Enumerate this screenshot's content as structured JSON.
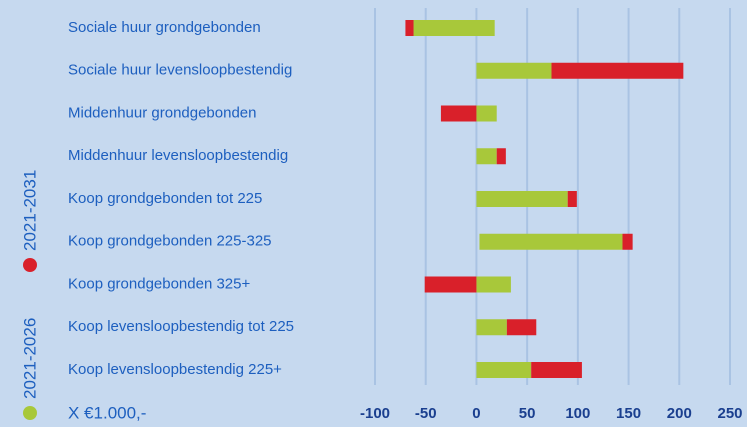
{
  "chart_data": {
    "type": "range-bar",
    "unit_label": "X €1.000,-",
    "categories": [
      "Sociale huur grondgebonden",
      "Sociale huur levensloopbestendig",
      "Middenhuur grondgebonden",
      "Middenhuur levensloopbestendig",
      "Koop grondgebonden tot 225",
      "Koop grondgebonden 225-325",
      "Koop grondgebonden 325+",
      "Koop levensloopbestendig tot 225",
      "Koop levensloopbestendig 225+"
    ],
    "series": [
      {
        "name": "2021-2026",
        "color": "#a8c83a",
        "values": [
          [
            -62,
            18
          ],
          [
            0,
            74
          ],
          [
            0,
            20
          ],
          [
            0,
            20
          ],
          [
            0,
            90
          ],
          [
            3,
            144
          ],
          [
            0,
            34
          ],
          [
            0,
            30
          ],
          [
            0,
            54
          ]
        ]
      },
      {
        "name": "2021-2031",
        "color": "#d9202a",
        "values": [
          [
            -70,
            -62
          ],
          [
            74,
            204
          ],
          [
            -35,
            0
          ],
          [
            20,
            29
          ],
          [
            90,
            99
          ],
          [
            144,
            154
          ],
          [
            -51,
            0
          ],
          [
            30,
            59
          ],
          [
            54,
            104
          ]
        ]
      }
    ],
    "xlim": [
      -100,
      250
    ],
    "xticks": [
      -100,
      -50,
      0,
      50,
      100,
      150,
      200,
      250
    ],
    "grid": true
  }
}
